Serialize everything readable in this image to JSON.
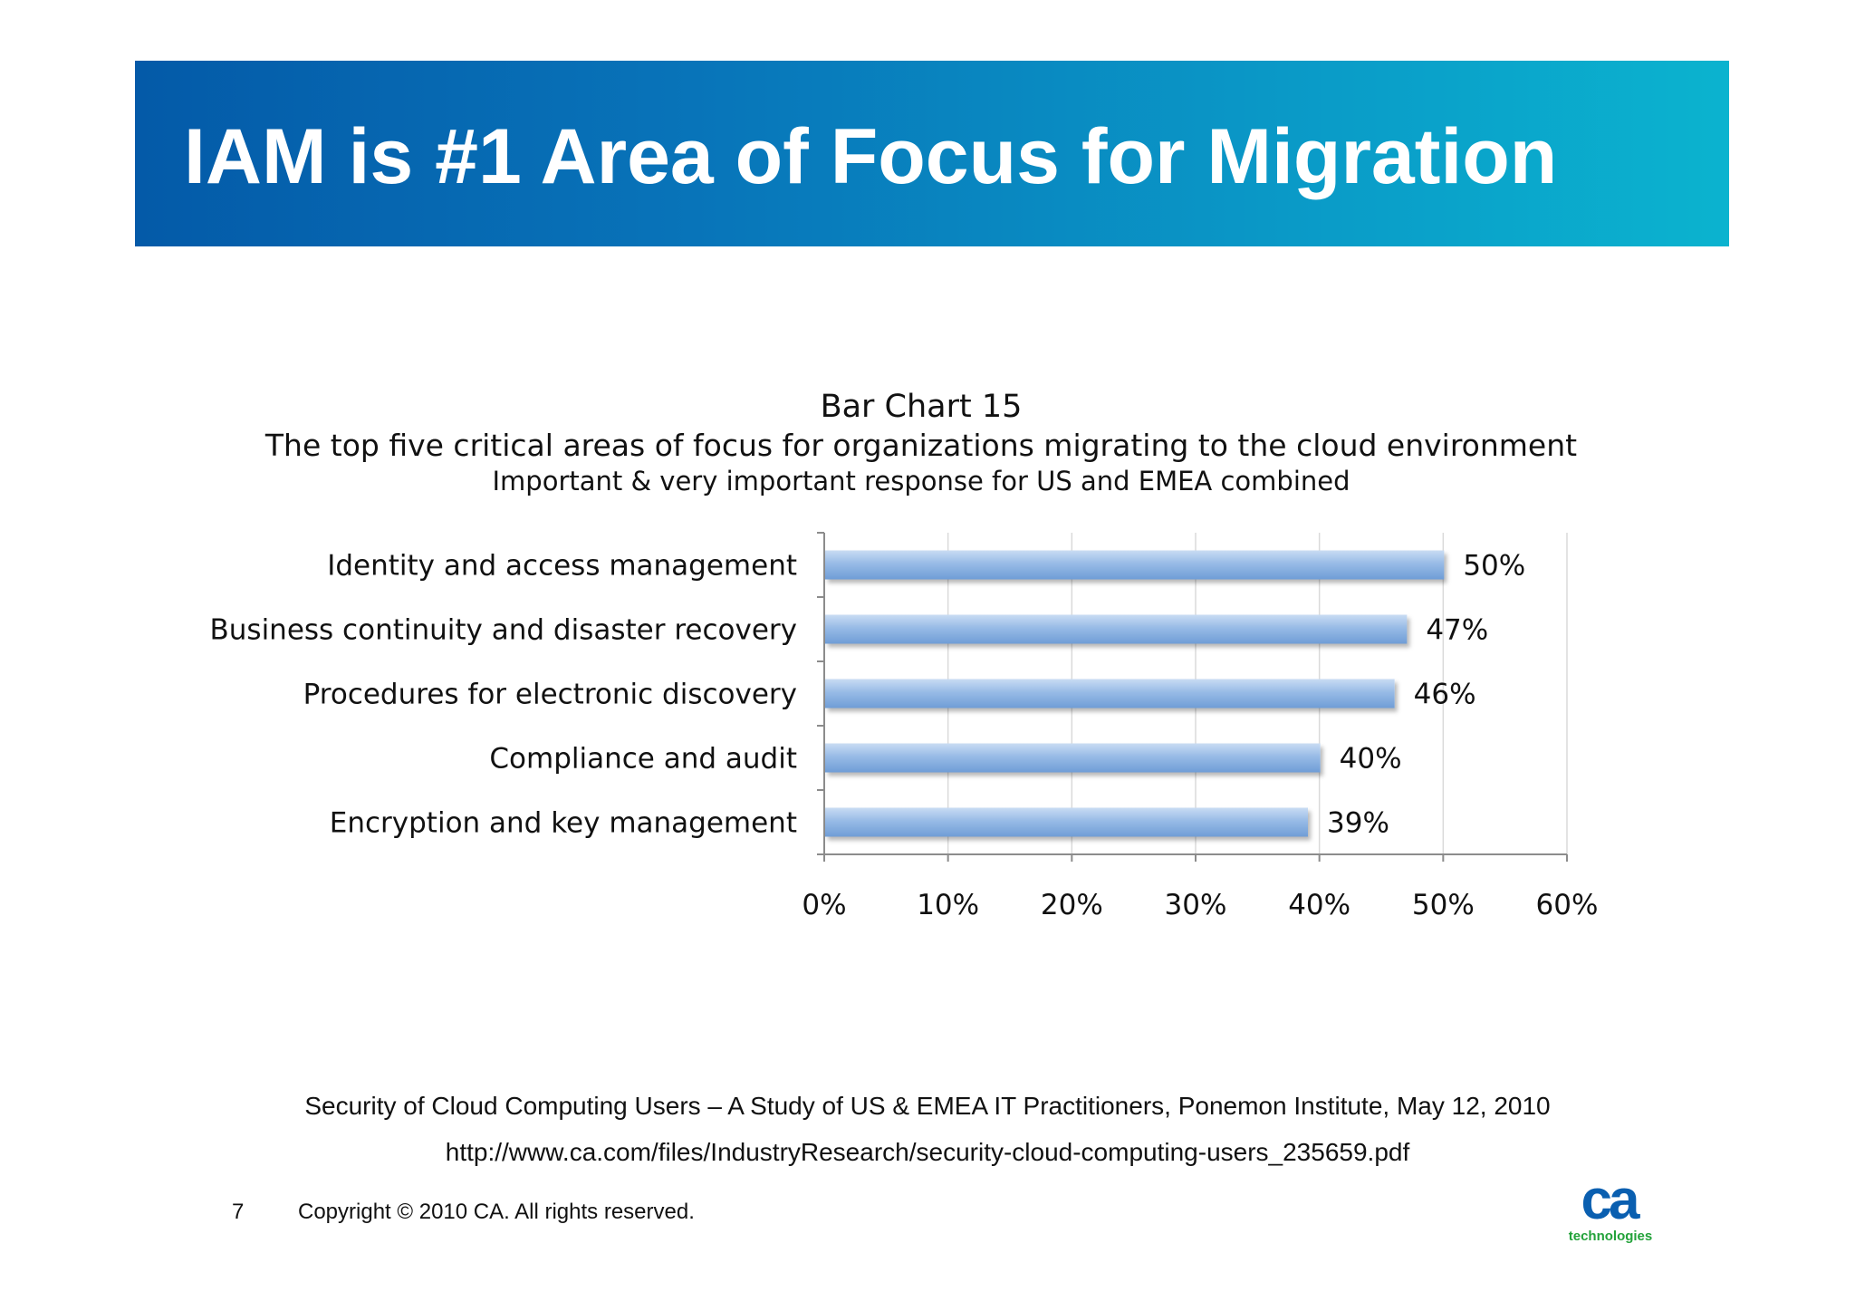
{
  "slide": {
    "title": "IAM is #1 Area of Focus for Migration",
    "source_citation": "Security of Cloud Computing Users – A Study of US & EMEA IT Practitioners, Ponemon Institute, May 12, 2010",
    "source_url": "http://www.ca.com/files/IndustryResearch/security-cloud-computing-users_235659.pdf",
    "page_number": "7",
    "copyright": "Copyright © 2010 CA. All rights reserved.",
    "logo": {
      "mark": "ca",
      "tagline": "technologies",
      "mark_color": "#0a5fb0",
      "tagline_color": "#23a23a"
    },
    "banner_colors": [
      "#045aa8",
      "#0bb3cf"
    ]
  },
  "chart_data": {
    "type": "bar",
    "orientation": "horizontal",
    "title": "Bar Chart 15",
    "subtitle": "The top five critical areas of focus for organizations migrating to the cloud environment",
    "subtitle2": "Important & very important response for US and EMEA combined",
    "categories": [
      "Identity and access management",
      "Business continuity and disaster recovery",
      "Procedures for electronic discovery",
      "Compliance and audit",
      "Encryption and key management"
    ],
    "values": [
      50,
      47,
      46,
      40,
      39
    ],
    "data_labels": [
      "50%",
      "47%",
      "46%",
      "40%",
      "39%"
    ],
    "xlim": [
      0,
      60
    ],
    "xticks": [
      0,
      10,
      20,
      30,
      40,
      50,
      60
    ],
    "xtick_labels": [
      "0%",
      "10%",
      "20%",
      "30%",
      "40%",
      "50%",
      "60%"
    ],
    "xlabel": "",
    "ylabel": "",
    "grid": true,
    "legend": "none",
    "bar_color": "#8fb4e3"
  }
}
